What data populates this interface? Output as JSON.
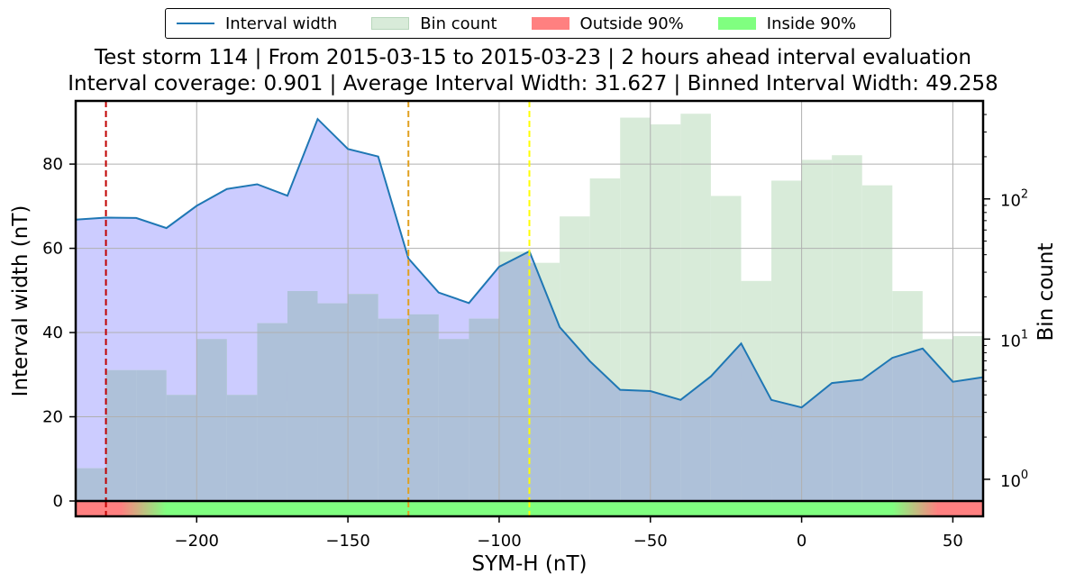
{
  "legend": {
    "interval_width": "Interval width",
    "bin_count": "Bin count",
    "outside": "Outside 90%",
    "inside": "Inside 90%"
  },
  "title_line1": "Test storm 114 | From 2015-03-15 to 2015-03-23 | 2 hours ahead interval evaluation",
  "title_line2": "Interval coverage: 0.901 | Average Interval Width: 31.627 | Binned Interval Width: 49.258",
  "colors": {
    "line": "#1f77b4",
    "interval_fill": "#ccccff",
    "bin_fill": "#d8ebd9",
    "overlap_fill": "#aec1d9",
    "outside": "#ff8080",
    "inside": "#80ff80",
    "vline_red": "#c00000",
    "vline_orange": "#e0a020",
    "vline_yellow": "#ffff00"
  },
  "chart_data": {
    "type": "line",
    "xlabel": "SYM-H (nT)",
    "ylabel": "Interval width (nT)",
    "y2label": "Bin count",
    "xlim": [
      -240,
      60
    ],
    "ylim": [
      0,
      95
    ],
    "y2lim_log": [
      0.7,
      500
    ],
    "y2_scale": "log",
    "xticks": [
      -200,
      -150,
      -100,
      -50,
      0,
      50
    ],
    "xtick_labels": [
      "−200",
      "−150",
      "−100",
      "−50",
      "0",
      "50"
    ],
    "yticks": [
      0,
      20,
      40,
      60,
      80
    ],
    "y2ticks": [
      {
        "value": 1,
        "base": "10",
        "exp": "0"
      },
      {
        "value": 10,
        "base": "10",
        "exp": "1"
      },
      {
        "value": 100,
        "base": "10",
        "exp": "2"
      }
    ],
    "grid": true,
    "legend_position": "top-center (above plot)",
    "series": [
      {
        "name": "Interval width",
        "x": [
          -240,
          -230,
          -220,
          -210,
          -200,
          -190,
          -180,
          -170,
          -160,
          -150,
          -140,
          -130,
          -120,
          -110,
          -100,
          -90,
          -80,
          -70,
          -60,
          -50,
          -40,
          -30,
          -20,
          -10,
          0,
          10,
          20,
          30,
          40,
          50,
          60
        ],
        "y": [
          66.8,
          67.3,
          67.2,
          64.8,
          70.1,
          74.1,
          75.2,
          72.5,
          90.7,
          83.6,
          81.8,
          57.6,
          49.5,
          47.0,
          55.6,
          59.3,
          41.3,
          33.2,
          26.4,
          26.1,
          24.0,
          29.6,
          37.4,
          24.0,
          22.2,
          28.0,
          28.8,
          34.0,
          36.2,
          28.3,
          29.4
        ]
      },
      {
        "name": "Bin count",
        "bin_edges": [
          -240,
          -230,
          -220,
          -210,
          -200,
          -190,
          -180,
          -170,
          -160,
          -150,
          -140,
          -130,
          -120,
          -110,
          -100,
          -90,
          -80,
          -70,
          -60,
          -50,
          -40,
          -30,
          -20,
          -10,
          0,
          10,
          20,
          30,
          40,
          50,
          60
        ],
        "counts": [
          1.2,
          6,
          6,
          4,
          10,
          4,
          13,
          22,
          18,
          21,
          14,
          15,
          10,
          14,
          42,
          35,
          75,
          140,
          380,
          340,
          405,
          105,
          26,
          135,
          190,
          205,
          125,
          22,
          10,
          10.5
        ]
      }
    ],
    "vlines": [
      {
        "x": -230,
        "color": "vline_red"
      },
      {
        "x": -130,
        "color": "vline_orange"
      },
      {
        "x": -90,
        "color": "vline_yellow"
      }
    ],
    "coverage_strip": [
      {
        "x": -240,
        "state": "outside"
      },
      {
        "x": -225,
        "state": "outside"
      },
      {
        "x": -210,
        "state": "inside"
      },
      {
        "x": 30,
        "state": "inside"
      },
      {
        "x": 45,
        "state": "outside"
      },
      {
        "x": 60,
        "state": "outside"
      }
    ]
  }
}
